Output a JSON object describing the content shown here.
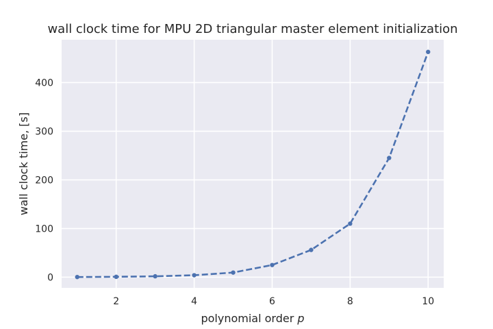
{
  "chart_data": {
    "type": "line",
    "title": "wall clock time for MPU 2D triangular master element initialization",
    "xlabel": "polynomial order",
    "xlabel_var": "p",
    "ylabel": "wall clock time, [s]",
    "x": [
      1,
      2,
      3,
      4,
      5,
      6,
      7,
      8,
      9,
      10
    ],
    "series": [
      {
        "values": [
          0.3,
          0.8,
          1.8,
          4.0,
          9.5,
          25.0,
          56.0,
          110.0,
          245.0,
          463.0
        ],
        "color": "#4c72b0",
        "line_style": "dashed",
        "marker": "circle"
      }
    ],
    "xlim": [
      0.6,
      10.4
    ],
    "ylim": [
      -22,
      488
    ],
    "xticks": [
      2,
      4,
      6,
      8,
      10
    ],
    "yticks": [
      0,
      100,
      200,
      300,
      400
    ],
    "grid": true,
    "background_color": "#eaeaf2",
    "grid_color": "#ffffff"
  }
}
